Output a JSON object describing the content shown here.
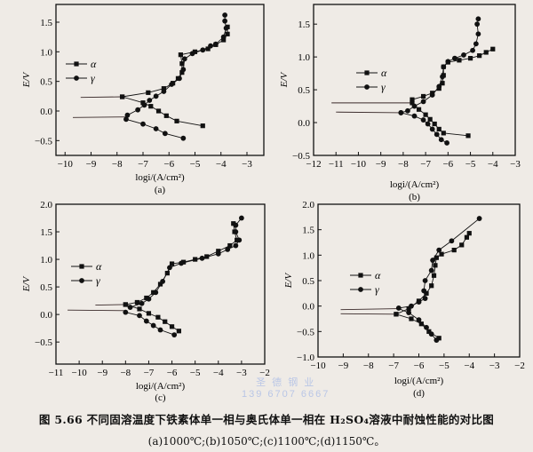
{
  "caption": {
    "title": "图 5.66   不同固溶温度下铁素体单一相与奥氏体单一相在 H₂SO₄溶液中耐蚀性能的对比图",
    "subtitle": "(a)1000℃;(b)1050℃;(c)1100℃;(d)1150℃。"
  },
  "watermark": {
    "line1": "圣 德 钢 业",
    "line2": "139 6707 6667"
  },
  "chart_data": [
    {
      "type": "line",
      "panel_label": "(a)",
      "xlabel": "logi/(A/cm²)",
      "ylabel": "E/V",
      "xlim": [
        -10.35,
        -2.35
      ],
      "ylim": [
        -0.75,
        1.8
      ],
      "xticks": [
        -10,
        -9,
        -8,
        -7,
        -6,
        -5,
        -4,
        -3
      ],
      "yticks": [
        -0.5,
        0.0,
        0.5,
        1.0,
        1.5
      ],
      "ytick_labels": [
        "−0.5",
        "0.0",
        "0.5",
        "1.0",
        "1.5"
      ],
      "grid": false,
      "legend": "upper-left",
      "series": [
        {
          "name": "α",
          "marker": "square",
          "tail": [
            [
              -9.4,
              0.23
            ],
            [
              -7.8,
              0.24
            ]
          ],
          "anodic": [
            [
              -7.8,
              0.24
            ],
            [
              -6.8,
              0.31
            ],
            [
              -6.2,
              0.38
            ],
            [
              -5.85,
              0.47
            ],
            [
              -5.65,
              0.55
            ],
            [
              -5.5,
              0.65
            ],
            [
              -5.5,
              0.8
            ],
            [
              -5.55,
              0.95
            ],
            [
              -5.0,
              1.0
            ],
            [
              -4.5,
              1.05
            ],
            [
              -4.2,
              1.12
            ],
            [
              -3.9,
              1.2
            ],
            [
              -3.75,
              1.3
            ],
            [
              -3.75,
              1.42
            ]
          ],
          "cathodic": [
            [
              -7.8,
              0.24
            ],
            [
              -7.0,
              0.14
            ],
            [
              -6.7,
              0.08
            ],
            [
              -6.4,
              0.0
            ],
            [
              -6.1,
              -0.08
            ],
            [
              -5.7,
              -0.17
            ],
            [
              -4.7,
              -0.25
            ]
          ]
        },
        {
          "name": "γ",
          "marker": "circle",
          "tail": [
            [
              -9.7,
              -0.11
            ],
            [
              -7.6,
              -0.1
            ]
          ],
          "anodic": [
            [
              -7.6,
              -0.07
            ],
            [
              -7.2,
              0.02
            ],
            [
              -6.95,
              0.1
            ],
            [
              -6.75,
              0.18
            ],
            [
              -6.5,
              0.25
            ],
            [
              -6.2,
              0.33
            ],
            [
              -5.9,
              0.45
            ],
            [
              -5.6,
              0.55
            ],
            [
              -5.45,
              0.7
            ],
            [
              -5.4,
              0.88
            ],
            [
              -5.1,
              0.97
            ],
            [
              -4.7,
              1.03
            ],
            [
              -4.4,
              1.1
            ],
            [
              -4.2,
              1.13
            ],
            [
              -3.9,
              1.25
            ],
            [
              -3.8,
              1.4
            ],
            [
              -3.85,
              1.52
            ],
            [
              -3.85,
              1.62
            ]
          ],
          "cathodic": [
            [
              -7.65,
              -0.14
            ],
            [
              -7.0,
              -0.22
            ],
            [
              -6.5,
              -0.3
            ],
            [
              -6.15,
              -0.38
            ],
            [
              -5.45,
              -0.46
            ]
          ]
        }
      ]
    },
    {
      "type": "line",
      "panel_label": "(b)",
      "xlabel": "logi/(A/cm²)",
      "ylabel": "E/V",
      "xlim": [
        -12,
        -3
      ],
      "ylim": [
        -0.5,
        1.8
      ],
      "xticks": [
        -12,
        -11,
        -10,
        -9,
        -8,
        -7,
        -6,
        -5,
        -4,
        -3
      ],
      "yticks": [
        -0.5,
        0.0,
        0.5,
        1.0,
        1.5
      ],
      "ytick_labels": [
        "−0.5",
        "0.0",
        "0.5",
        "1.0",
        "1.5"
      ],
      "grid": false,
      "legend": "upper-left",
      "series": [
        {
          "name": "α",
          "marker": "square",
          "tail": [
            [
              -11.2,
              0.3
            ],
            [
              -7.6,
              0.3
            ]
          ],
          "anodic": [
            [
              -7.6,
              0.35
            ],
            [
              -7.1,
              0.4
            ],
            [
              -6.7,
              0.45
            ],
            [
              -6.4,
              0.52
            ],
            [
              -6.25,
              0.6
            ],
            [
              -6.2,
              0.72
            ],
            [
              -6.2,
              0.85
            ],
            [
              -6.0,
              0.92
            ],
            [
              -5.5,
              0.95
            ],
            [
              -5.0,
              0.98
            ],
            [
              -4.6,
              1.02
            ],
            [
              -4.3,
              1.07
            ],
            [
              -4.0,
              1.12
            ]
          ],
          "cathodic": [
            [
              -7.6,
              0.3
            ],
            [
              -7.3,
              0.2
            ],
            [
              -7.0,
              0.12
            ],
            [
              -6.8,
              0.05
            ],
            [
              -6.6,
              -0.02
            ],
            [
              -6.4,
              -0.1
            ],
            [
              -6.2,
              -0.16
            ],
            [
              -5.1,
              -0.2
            ]
          ]
        },
        {
          "name": "γ",
          "marker": "circle",
          "tail": [
            [
              -11.0,
              0.16
            ],
            [
              -8.1,
              0.15
            ]
          ],
          "anodic": [
            [
              -8.1,
              0.15
            ],
            [
              -7.8,
              0.18
            ],
            [
              -7.5,
              0.25
            ],
            [
              -7.1,
              0.32
            ],
            [
              -6.7,
              0.42
            ],
            [
              -6.4,
              0.55
            ],
            [
              -6.25,
              0.7
            ],
            [
              -6.2,
              0.85
            ],
            [
              -6.0,
              0.93
            ],
            [
              -5.7,
              0.98
            ],
            [
              -5.3,
              1.03
            ],
            [
              -4.9,
              1.1
            ],
            [
              -4.75,
              1.2
            ],
            [
              -4.65,
              1.35
            ],
            [
              -4.7,
              1.5
            ],
            [
              -4.65,
              1.58
            ]
          ],
          "cathodic": [
            [
              -8.1,
              0.15
            ],
            [
              -7.5,
              0.1
            ],
            [
              -7.1,
              0.04
            ],
            [
              -6.9,
              -0.02
            ],
            [
              -6.7,
              -0.1
            ],
            [
              -6.5,
              -0.18
            ],
            [
              -6.3,
              -0.26
            ],
            [
              -6.05,
              -0.31
            ]
          ]
        }
      ]
    },
    {
      "type": "line",
      "panel_label": "(c)",
      "xlabel": "logi/(A/cm²)",
      "ylabel": "E/V",
      "xlim": [
        -11,
        -2
      ],
      "ylim": [
        -0.9,
        2.0
      ],
      "xticks": [
        -11,
        -10,
        -9,
        -8,
        -7,
        -6,
        -5,
        -4,
        -3,
        -2
      ],
      "yticks": [
        -0.5,
        0.0,
        0.5,
        1.0,
        1.5,
        2.0
      ],
      "ytick_labels": [
        "−0.5",
        "0.0",
        "0.5",
        "1.0",
        "1.5",
        "2.0"
      ],
      "grid": false,
      "legend": "upper-left",
      "series": [
        {
          "name": "α",
          "marker": "square",
          "tail": [
            [
              -9.3,
              0.17
            ],
            [
              -8.0,
              0.18
            ]
          ],
          "anodic": [
            [
              -8.0,
              0.18
            ],
            [
              -7.5,
              0.22
            ],
            [
              -7.1,
              0.3
            ],
            [
              -6.8,
              0.4
            ],
            [
              -6.5,
              0.55
            ],
            [
              -6.2,
              0.75
            ],
            [
              -6.0,
              0.92
            ],
            [
              -5.5,
              0.95
            ],
            [
              -5.0,
              1.0
            ],
            [
              -4.5,
              1.05
            ],
            [
              -4.0,
              1.15
            ],
            [
              -3.5,
              1.25
            ],
            [
              -3.2,
              1.35
            ],
            [
              -3.3,
              1.5
            ],
            [
              -3.35,
              1.65
            ]
          ],
          "cathodic": [
            [
              -8.0,
              0.18
            ],
            [
              -7.4,
              0.1
            ],
            [
              -7.0,
              0.02
            ],
            [
              -6.6,
              -0.05
            ],
            [
              -6.3,
              -0.13
            ],
            [
              -6.0,
              -0.22
            ],
            [
              -5.7,
              -0.3
            ]
          ]
        },
        {
          "name": "γ",
          "marker": "circle",
          "tail": [
            [
              -10.5,
              0.08
            ],
            [
              -8.0,
              0.07
            ]
          ],
          "anodic": [
            [
              -7.8,
              0.13
            ],
            [
              -7.3,
              0.2
            ],
            [
              -7.0,
              0.28
            ],
            [
              -6.7,
              0.4
            ],
            [
              -6.4,
              0.6
            ],
            [
              -6.1,
              0.85
            ],
            [
              -5.6,
              0.93
            ],
            [
              -4.7,
              1.02
            ],
            [
              -4.0,
              1.1
            ],
            [
              -3.6,
              1.18
            ],
            [
              -3.25,
              1.25
            ],
            [
              -3.1,
              1.35
            ],
            [
              -3.25,
              1.5
            ],
            [
              -3.25,
              1.62
            ],
            [
              -3.0,
              1.75
            ]
          ],
          "cathodic": [
            [
              -8.0,
              0.04
            ],
            [
              -7.4,
              -0.02
            ],
            [
              -7.1,
              -0.12
            ],
            [
              -6.8,
              -0.2
            ],
            [
              -6.5,
              -0.28
            ],
            [
              -5.9,
              -0.37
            ]
          ]
        }
      ]
    },
    {
      "type": "line",
      "panel_label": "(d)",
      "xlabel": "logi/(A/cm²)",
      "ylabel": "E/V",
      "xlim": [
        -10,
        -2
      ],
      "ylim": [
        -1.0,
        2.0
      ],
      "xticks": [
        -10,
        -9,
        -8,
        -7,
        -6,
        -5,
        -4,
        -3,
        -2
      ],
      "yticks": [
        -1.0,
        -0.5,
        0.0,
        0.5,
        1.0,
        1.5,
        2.0
      ],
      "ytick_labels": [
        "−1.0",
        "−0.5",
        "0.0",
        "0.5",
        "1.0",
        "1.5",
        "2.0"
      ],
      "grid": false,
      "legend": "upper-left",
      "series": [
        {
          "name": "α",
          "marker": "square",
          "tail": [
            [
              -9.1,
              -0.15
            ],
            [
              -6.9,
              -0.16
            ]
          ],
          "anodic": [
            [
              -6.9,
              -0.16
            ],
            [
              -6.4,
              -0.05
            ],
            [
              -6.0,
              0.1
            ],
            [
              -5.7,
              0.25
            ],
            [
              -5.5,
              0.4
            ],
            [
              -5.4,
              0.6
            ],
            [
              -5.35,
              0.8
            ],
            [
              -5.3,
              0.95
            ],
            [
              -5.1,
              1.02
            ],
            [
              -4.6,
              1.1
            ],
            [
              -4.3,
              1.2
            ],
            [
              -4.1,
              1.35
            ],
            [
              -4.0,
              1.43
            ]
          ],
          "cathodic": [
            [
              -6.9,
              -0.16
            ],
            [
              -6.3,
              -0.25
            ],
            [
              -5.9,
              -0.35
            ],
            [
              -5.6,
              -0.5
            ],
            [
              -5.2,
              -0.63
            ]
          ]
        },
        {
          "name": "γ",
          "marker": "circle",
          "tail": [
            [
              -9.1,
              -0.07
            ],
            [
              -6.8,
              -0.05
            ]
          ],
          "anodic": [
            [
              -6.8,
              -0.04
            ],
            [
              -6.3,
              0.0
            ],
            [
              -6.0,
              0.08
            ],
            [
              -5.75,
              0.15
            ],
            [
              -5.8,
              0.3
            ],
            [
              -5.75,
              0.5
            ],
            [
              -5.5,
              0.7
            ],
            [
              -5.45,
              0.9
            ],
            [
              -5.2,
              1.1
            ],
            [
              -4.7,
              1.28
            ],
            [
              -3.6,
              1.72
            ]
          ],
          "cathodic": [
            [
              -6.4,
              -0.13
            ],
            [
              -6.0,
              -0.27
            ],
            [
              -5.7,
              -0.42
            ],
            [
              -5.5,
              -0.55
            ],
            [
              -5.3,
              -0.67
            ]
          ]
        }
      ]
    }
  ]
}
